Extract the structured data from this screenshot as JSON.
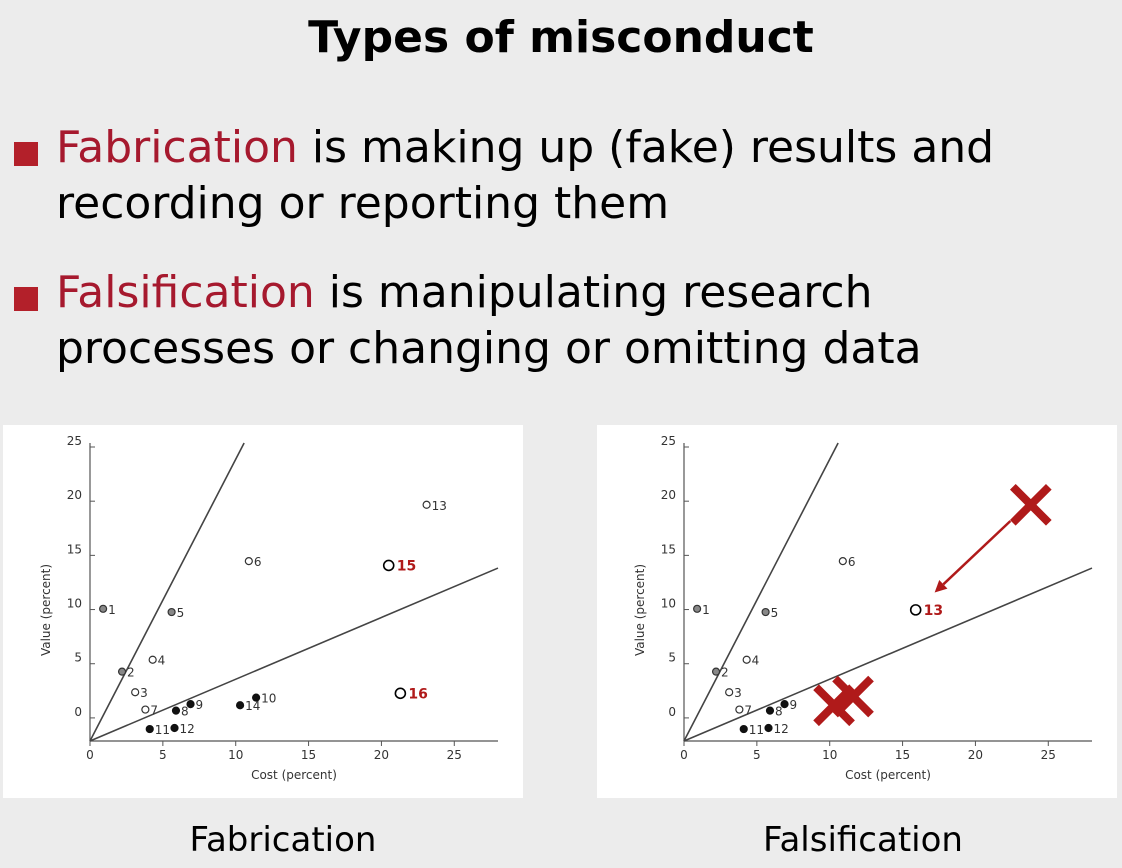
{
  "slide": {
    "title": "Types of misconduct",
    "bullets": [
      {
        "term": "Fabrication",
        "rest": " is making up (fake) results and recording or reporting them"
      },
      {
        "term": "Falsification",
        "rest": " is manipulating research processes or changing or omitting data"
      }
    ],
    "captions": [
      "Fabrication",
      "Falsification"
    ]
  },
  "colors": {
    "accent": "#a6192e",
    "bullet": "#b3202a",
    "mark": "#b01a1a"
  },
  "chart_data": [
    {
      "type": "scatter",
      "title": "",
      "xlabel": "Cost (percent)",
      "ylabel": "Value (percent)",
      "xlim": [
        0,
        28
      ],
      "ylim": [
        -2.5,
        25
      ],
      "xticks": [
        0,
        5,
        10,
        15,
        20,
        25
      ],
      "yticks": [
        0,
        5,
        10,
        15,
        20,
        25
      ],
      "lines": [
        {
          "slope": 2.6
        },
        {
          "slope": 0.57
        }
      ],
      "points": [
        {
          "label": "1",
          "x": 0.9,
          "y": 9.7,
          "style": "gray"
        },
        {
          "label": "2",
          "x": 2.2,
          "y": 3.9,
          "style": "gray"
        },
        {
          "label": "3",
          "x": 3.1,
          "y": 2.0,
          "style": "open"
        },
        {
          "label": "4",
          "x": 4.3,
          "y": 5.0,
          "style": "open"
        },
        {
          "label": "5",
          "x": 5.6,
          "y": 9.4,
          "style": "gray"
        },
        {
          "label": "6",
          "x": 10.9,
          "y": 14.1,
          "style": "open"
        },
        {
          "label": "7",
          "x": 3.8,
          "y": 0.4,
          "style": "open"
        },
        {
          "label": "8",
          "x": 5.9,
          "y": 0.3,
          "style": "black"
        },
        {
          "label": "9",
          "x": 6.9,
          "y": 0.9,
          "style": "black"
        },
        {
          "label": "10",
          "x": 11.4,
          "y": 1.5,
          "style": "black"
        },
        {
          "label": "11",
          "x": 4.1,
          "y": -1.4,
          "style": "black"
        },
        {
          "label": "12",
          "x": 5.8,
          "y": -1.3,
          "style": "black"
        },
        {
          "label": "13",
          "x": 23.1,
          "y": 19.3,
          "style": "open"
        },
        {
          "label": "14",
          "x": 10.3,
          "y": 0.8,
          "style": "black"
        },
        {
          "label": "15",
          "x": 20.5,
          "y": 13.7,
          "style": "added"
        },
        {
          "label": "16",
          "x": 21.3,
          "y": 1.9,
          "style": "added"
        }
      ]
    },
    {
      "type": "scatter",
      "title": "",
      "xlabel": "Cost (percent)",
      "ylabel": "Value (percent)",
      "xlim": [
        0,
        28
      ],
      "ylim": [
        -2.5,
        25
      ],
      "xticks": [
        0,
        5,
        10,
        15,
        20,
        25
      ],
      "yticks": [
        0,
        5,
        10,
        15,
        20,
        25
      ],
      "lines": [
        {
          "slope": 2.6
        },
        {
          "slope": 0.57
        }
      ],
      "points": [
        {
          "label": "1",
          "x": 0.9,
          "y": 9.7,
          "style": "gray"
        },
        {
          "label": "2",
          "x": 2.2,
          "y": 3.9,
          "style": "gray"
        },
        {
          "label": "3",
          "x": 3.1,
          "y": 2.0,
          "style": "open"
        },
        {
          "label": "4",
          "x": 4.3,
          "y": 5.0,
          "style": "open"
        },
        {
          "label": "5",
          "x": 5.6,
          "y": 9.4,
          "style": "gray"
        },
        {
          "label": "6",
          "x": 10.9,
          "y": 14.1,
          "style": "open"
        },
        {
          "label": "7",
          "x": 3.8,
          "y": 0.4,
          "style": "open"
        },
        {
          "label": "8",
          "x": 5.9,
          "y": 0.3,
          "style": "black"
        },
        {
          "label": "9",
          "x": 6.9,
          "y": 0.9,
          "style": "black"
        },
        {
          "label": "11",
          "x": 4.1,
          "y": -1.4,
          "style": "black"
        },
        {
          "label": "12",
          "x": 5.8,
          "y": -1.3,
          "style": "black"
        },
        {
          "label": "13",
          "x": 15.9,
          "y": 9.6,
          "style": "moved"
        }
      ],
      "removed": [
        {
          "x": 23.8,
          "y": 19.3
        },
        {
          "x": 10.3,
          "y": 0.8
        },
        {
          "x": 11.6,
          "y": 1.6
        }
      ],
      "arrow": {
        "from": [
          22.4,
          17.8
        ],
        "to": [
          17.2,
          11.2
        ]
      }
    }
  ]
}
